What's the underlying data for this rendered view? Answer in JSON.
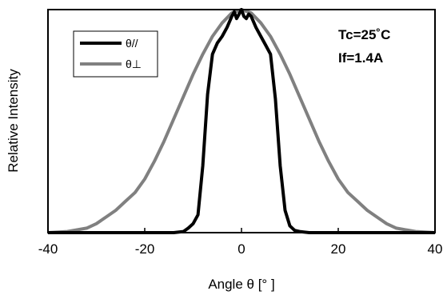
{
  "chart_data": {
    "type": "line",
    "xlabel": "Angle  θ [° ]",
    "ylabel": "Relative Intensity",
    "xlim": [
      -40,
      40
    ],
    "ylim": [
      0,
      1
    ],
    "x_ticks": [
      -40,
      -20,
      0,
      20,
      40
    ],
    "x_tick_labels": [
      "-40",
      "-20",
      "0",
      "20",
      "40"
    ],
    "y_tick_labels_shown": false,
    "grid": false,
    "legend_position": "top-left",
    "annotations": [
      "Tc=25˚C",
      "If=1.4A"
    ],
    "series": [
      {
        "name": "θ//",
        "color": "#000000",
        "x": [
          -40,
          -20,
          -14,
          -12,
          -11,
          -10,
          -9,
          -8,
          -7,
          -6,
          -5,
          -4,
          -3,
          -2,
          -1.5,
          -1,
          -0.5,
          0,
          0.5,
          1,
          1.5,
          2,
          3,
          4,
          5,
          6,
          7,
          8,
          9,
          10,
          11,
          12,
          14,
          20,
          40
        ],
        "y": [
          0,
          0,
          0,
          0.005,
          0.02,
          0.04,
          0.08,
          0.3,
          0.62,
          0.8,
          0.85,
          0.88,
          0.92,
          0.97,
          0.99,
          0.96,
          0.98,
          1.0,
          0.97,
          0.96,
          0.98,
          0.97,
          0.92,
          0.88,
          0.84,
          0.8,
          0.6,
          0.3,
          0.1,
          0.03,
          0.01,
          0.005,
          0,
          0,
          0
        ]
      },
      {
        "name": "θ⊥",
        "color": "#808080",
        "x": [
          -40,
          -36,
          -32,
          -30,
          -28,
          -26,
          -24,
          -22,
          -20,
          -18,
          -16,
          -14,
          -12,
          -10,
          -8,
          -6,
          -4,
          -2,
          0,
          2,
          4,
          6,
          8,
          10,
          12,
          14,
          16,
          18,
          20,
          22,
          24,
          26,
          28,
          30,
          32,
          36,
          40
        ],
        "y": [
          0.0,
          0.005,
          0.02,
          0.04,
          0.07,
          0.1,
          0.14,
          0.18,
          0.24,
          0.32,
          0.41,
          0.51,
          0.61,
          0.71,
          0.8,
          0.88,
          0.94,
          0.985,
          1.0,
          0.985,
          0.94,
          0.88,
          0.8,
          0.71,
          0.61,
          0.51,
          0.41,
          0.32,
          0.24,
          0.18,
          0.14,
          0.1,
          0.07,
          0.04,
          0.02,
          0.005,
          0.0
        ]
      }
    ]
  }
}
